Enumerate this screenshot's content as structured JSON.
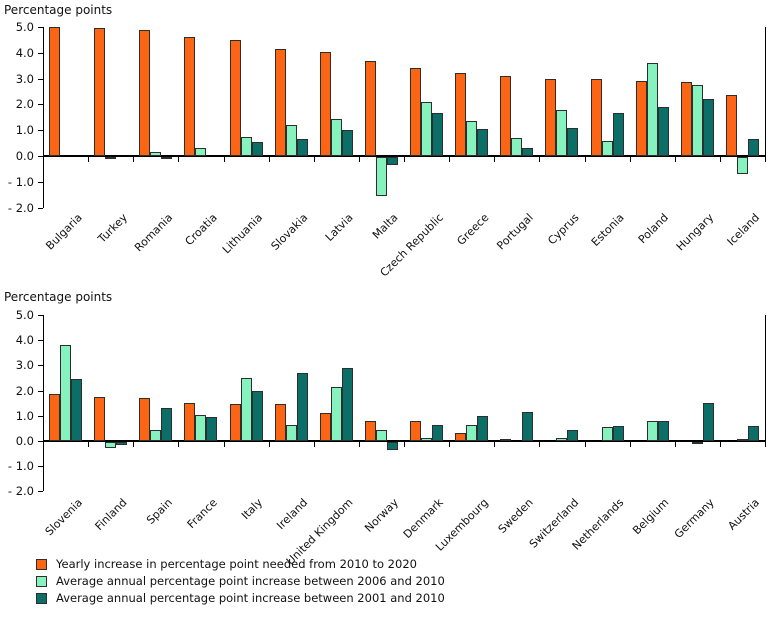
{
  "colors": {
    "orange": "#fb6514",
    "mint": "#86f3bf",
    "teal": "#0b6f68",
    "bar_border": "#2e2e2e",
    "axis": "#000000",
    "text": "#111111",
    "background": "#ffffff"
  },
  "chart_data": [
    {
      "type": "bar",
      "title": "Percentage points",
      "ylim": [
        -2.0,
        5.0
      ],
      "grid": false,
      "ytick_values": [
        5,
        4,
        3,
        2,
        1,
        0,
        -1,
        -2
      ],
      "ytick_labels": [
        "5.0",
        "4.0",
        "3.0",
        "2.0",
        "1.0",
        "0.0",
        "- 1.0",
        "- 2.0"
      ],
      "categories": [
        "Bulgaria",
        "Turkey",
        "Romania",
        "Croatia",
        "Lithuania",
        "Slovakia",
        "Latvia",
        "Malta",
        "Czech Republic",
        "Greece",
        "Portugal",
        "Cyprus",
        "Estonia",
        "Poland",
        "Hungary",
        "Iceland"
      ],
      "series": [
        {
          "name": "Yearly increase in percentage point needed from 2010 to 2020",
          "color": "#fb6514",
          "values": [
            5.0,
            4.95,
            4.9,
            4.6,
            4.5,
            4.15,
            4.05,
            3.7,
            3.4,
            3.2,
            3.1,
            3.0,
            3.0,
            2.9,
            2.85,
            2.35
          ]
        },
        {
          "name": "Average annual percentage point increase between 2006 and 2010",
          "color": "#86f3bf",
          "values": [
            0,
            -0.05,
            0.15,
            0.3,
            0.75,
            1.2,
            1.45,
            -1.5,
            2.1,
            1.35,
            0.7,
            1.8,
            0.6,
            3.6,
            2.75,
            -0.65
          ]
        },
        {
          "name": "Average annual percentage point increase between 2001 and 2010",
          "color": "#0b6f68",
          "values": [
            0,
            0,
            -0.07,
            0,
            0.55,
            0.65,
            1.0,
            -0.3,
            1.65,
            1.05,
            0.3,
            1.1,
            1.65,
            1.9,
            2.2,
            0.65
          ]
        }
      ]
    },
    {
      "type": "bar",
      "title": "Percentage points",
      "ylim": [
        -2.0,
        5.0
      ],
      "grid": false,
      "ytick_values": [
        5,
        4,
        3,
        2,
        1,
        0,
        -1,
        -2
      ],
      "ytick_labels": [
        "5.0",
        "4.0",
        "3.0",
        "2.0",
        "1.0",
        "0.0",
        "- 1.0",
        "- 2.0"
      ],
      "categories": [
        "Slovenia",
        "Finland",
        "Spain",
        "France",
        "Italy",
        "Ireland",
        "United Kingdom",
        "Norway",
        "Denmark",
        "Luxembourg",
        "Sweden",
        "Switzerland",
        "Netherlands",
        "Belgium",
        "Germany",
        "Austria"
      ],
      "series": [
        {
          "name": "Yearly increase in percentage point needed from 2010 to 2020",
          "color": "#fb6514",
          "values": [
            1.85,
            1.75,
            1.7,
            1.5,
            1.45,
            1.45,
            1.1,
            0.8,
            0.8,
            0.3,
            0.05,
            0,
            0,
            0,
            0,
            0
          ]
        },
        {
          "name": "Average annual percentage point increase between 2006 and 2010",
          "color": "#86f3bf",
          "values": [
            3.8,
            -0.25,
            0.45,
            1.05,
            2.5,
            0.65,
            2.15,
            0.45,
            0.1,
            0.65,
            0,
            0.1,
            0.55,
            0.8,
            -0.07,
            0.03
          ]
        },
        {
          "name": "Average annual percentage point increase between 2001 and 2010",
          "color": "#0b6f68",
          "values": [
            2.45,
            -0.1,
            1.3,
            0.95,
            2.0,
            2.7,
            2.9,
            -0.3,
            0.65,
            1.0,
            1.15,
            0.45,
            0.6,
            0.8,
            1.5,
            0.6
          ]
        }
      ]
    }
  ],
  "legend": {
    "items": [
      {
        "label": "Yearly increase in percentage point needed from 2010 to 2020",
        "color": "#fb6514"
      },
      {
        "label": "Average annual percentage point increase between 2006 and 2010",
        "color": "#86f3bf"
      },
      {
        "label": "Average annual percentage point increase between 2001 and 2010",
        "color": "#0b6f68"
      }
    ]
  }
}
